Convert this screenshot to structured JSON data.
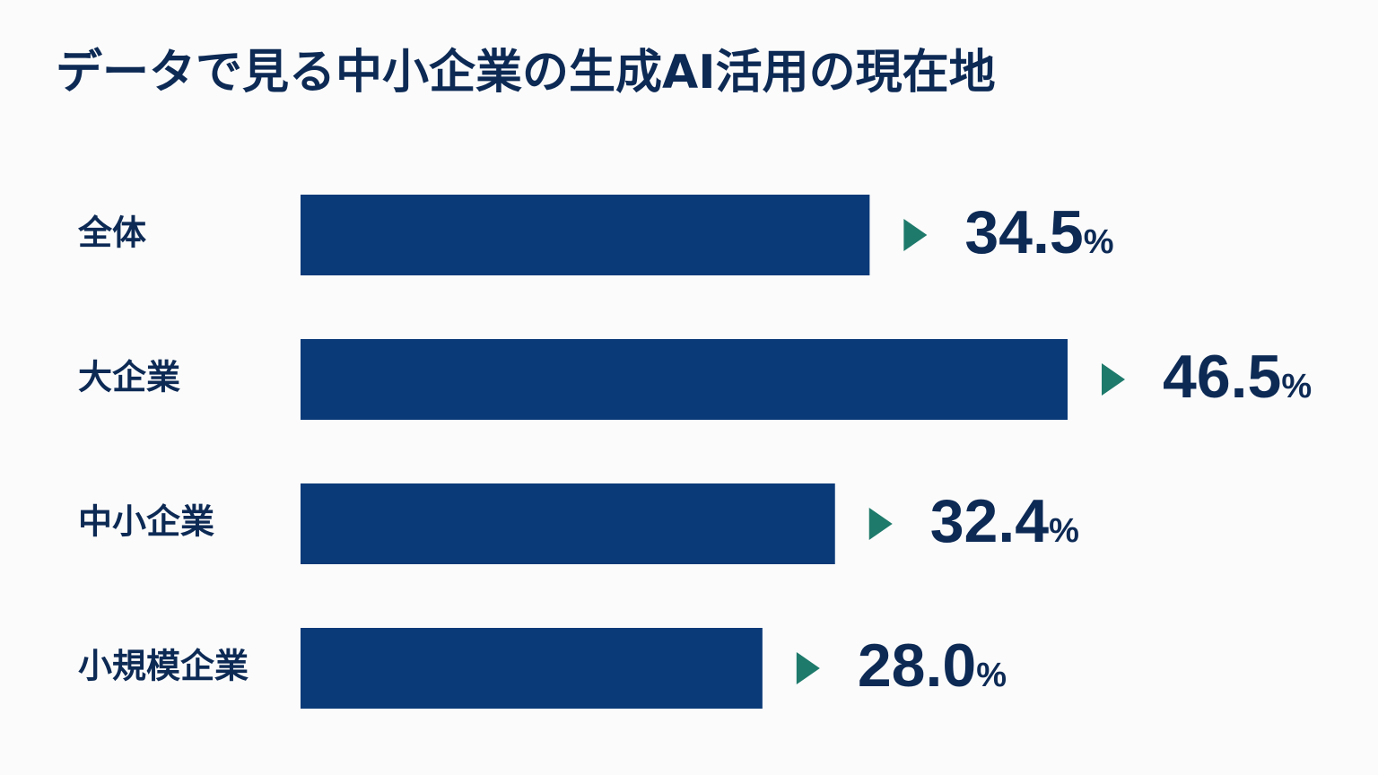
{
  "chart_data": {
    "type": "bar",
    "orientation": "horizontal",
    "title": "データで見る中小企業の生成AI活用の現在地",
    "categories": [
      "全体",
      "大企業",
      "中小企業",
      "小規模企業"
    ],
    "values": [
      34.5,
      46.5,
      32.4,
      28.0
    ],
    "value_labels": [
      "34.5%",
      "46.5%",
      "32.4%",
      "28.0%"
    ],
    "color": "#0b3a78"
  }
}
